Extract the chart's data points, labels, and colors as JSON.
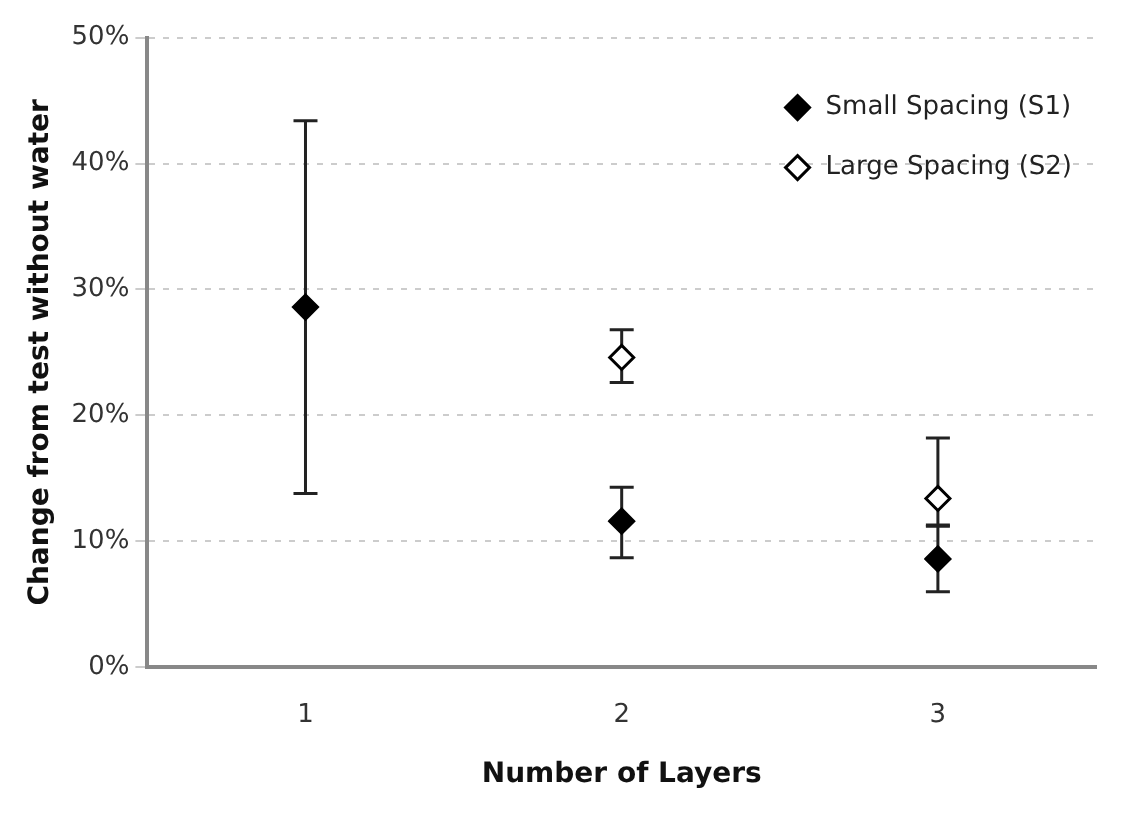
{
  "chart_data": {
    "type": "scatter",
    "xlabel": "Number of Layers",
    "ylabel": "Change from test without water",
    "categories": [
      "1",
      "2",
      "3"
    ],
    "series": [
      {
        "name": "Small Spacing (S1)",
        "color": "#000000",
        "values": [
          28.6,
          11.6,
          8.6
        ],
        "errors": [
          [
            13.8,
            43.4
          ],
          [
            8.7,
            14.3
          ],
          [
            6.0,
            11.2
          ]
        ]
      },
      {
        "name": "Large Spacing (S2)",
        "color": "#ffffff",
        "values": [
          null,
          24.6,
          13.4
        ],
        "errors": [
          null,
          [
            22.6,
            26.8
          ],
          [
            11.3,
            18.2
          ]
        ]
      }
    ],
    "ylim": [
      0,
      50
    ],
    "yticks": [
      {
        "value": 0,
        "label": "0%"
      },
      {
        "value": 10,
        "label": "10%"
      },
      {
        "value": 20,
        "label": "20%"
      },
      {
        "value": 30,
        "label": "30%"
      },
      {
        "value": 40,
        "label": "40%"
      },
      {
        "value": 50,
        "label": "50%"
      }
    ],
    "grid": "y",
    "legend": "top right",
    "marker": "diamond"
  }
}
